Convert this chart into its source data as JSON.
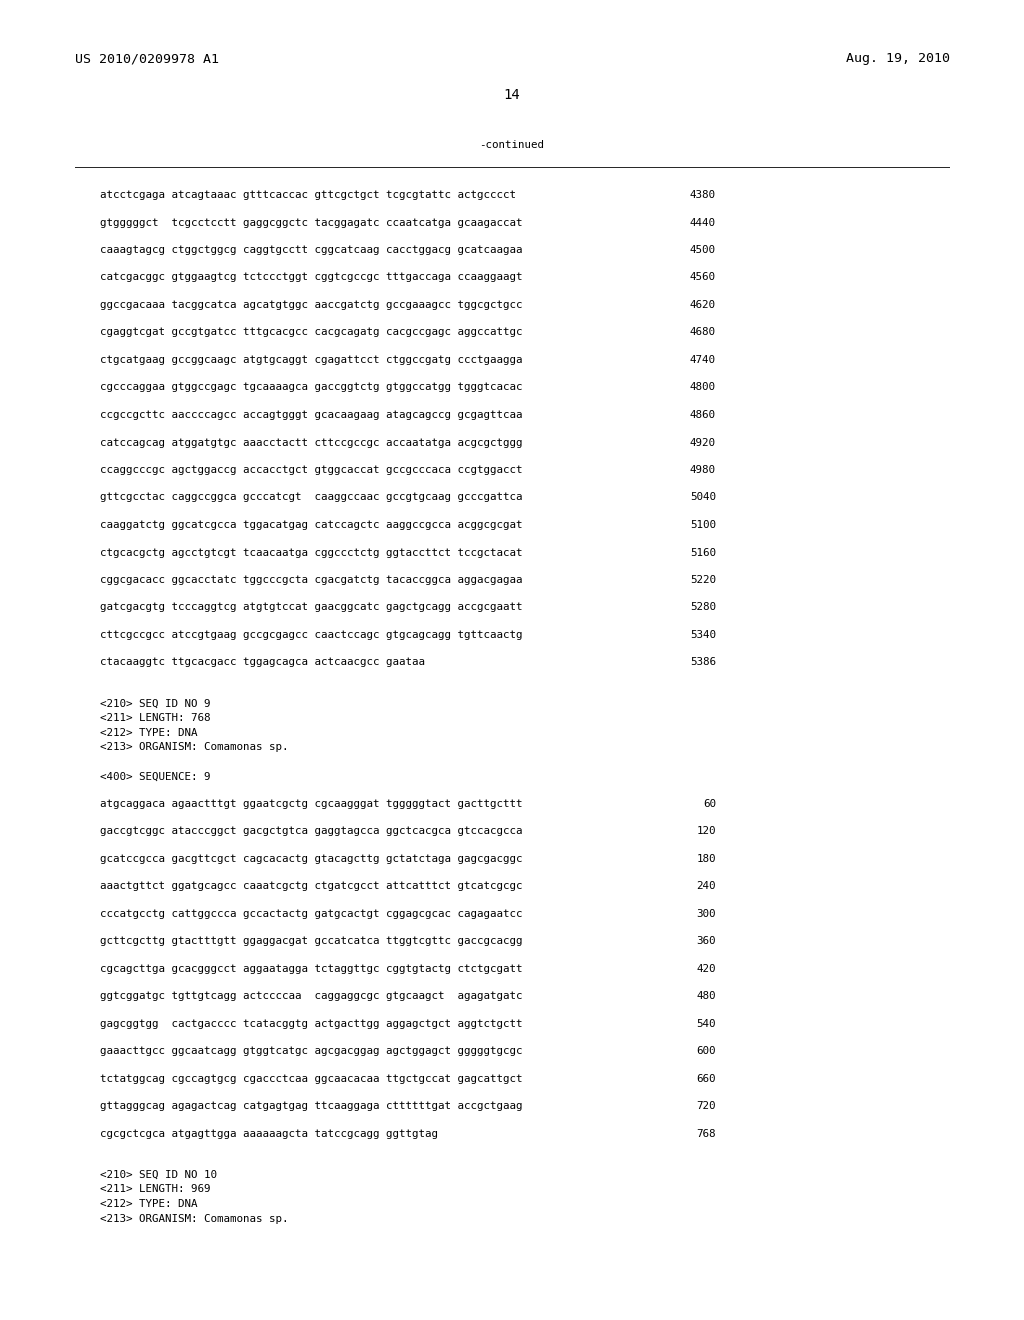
{
  "header_left": "US 2010/0209978 A1",
  "header_right": "Aug. 19, 2010",
  "page_number": "14",
  "continued_label": "-continued",
  "background_color": "#ffffff",
  "text_color": "#000000",
  "font_size_header": 9.5,
  "font_size_body": 7.8,
  "font_size_page": 10.0,
  "sequence_lines": [
    [
      "atcctcgaga atcagtaaac gtttcaccac gttcgctgct tcgcgtattc actgcccct",
      "4380"
    ],
    [
      "gtgggggct  tcgcctcctt gaggcggctc tacggagatc ccaatcatga gcaagaccat",
      "4440"
    ],
    [
      "caaagtagcg ctggctggcg caggtgcctt cggcatcaag cacctggacg gcatcaagaa",
      "4500"
    ],
    [
      "catcgacggc gtggaagtcg tctccctggt cggtcgccgc tttgaccaga ccaaggaagt",
      "4560"
    ],
    [
      "ggccgacaaa tacggcatca agcatgtggc aaccgatctg gccgaaagcc tggcgctgcc",
      "4620"
    ],
    [
      "cgaggtcgat gccgtgatcc tttgcacgcc cacgcagatg cacgccgagc aggccattgc",
      "4680"
    ],
    [
      "ctgcatgaag gccggcaagc atgtgcaggt cgagattcct ctggccgatg ccctgaagga",
      "4740"
    ],
    [
      "cgcccaggaa gtggccgagc tgcaaaagca gaccggtctg gtggccatgg tgggtcacac",
      "4800"
    ],
    [
      "ccgccgcttc aaccccagcc accagtgggt gcacaagaag atagcagccg gcgagttcaa",
      "4860"
    ],
    [
      "catccagcag atggatgtgc aaacctactt cttccgccgc accaatatga acgcgctggg",
      "4920"
    ],
    [
      "ccaggcccgc agctggaccg accacctgct gtggcaccat gccgcccaca ccgtggacct",
      "4980"
    ],
    [
      "gttcgcctac caggccggca gcccatcgt  caaggccaac gccgtgcaag gcccgattca",
      "5040"
    ],
    [
      "caaggatctg ggcatcgcca tggacatgag catccagctc aaggccgcca acggcgcgat",
      "5100"
    ],
    [
      "ctgcacgctg agcctgtcgt tcaacaatga cggccctctg ggtaccttct tccgctacat",
      "5160"
    ],
    [
      "cggcgacacc ggcacctatc tggcccgcta cgacgatctg tacaccggca aggacgagaa",
      "5220"
    ],
    [
      "gatcgacgtg tcccaggtcg atgtgtccat gaacggcatc gagctgcagg accgcgaatt",
      "5280"
    ],
    [
      "cttcgccgcc atccgtgaag gccgcgagcc caactccagc gtgcagcagg tgttcaactg",
      "5340"
    ],
    [
      "ctacaaggtc ttgcacgacc tggagcagca actcaacgcc gaataa",
      "5386"
    ]
  ],
  "seq9_header": [
    "<210> SEQ ID NO 9",
    "<211> LENGTH: 768",
    "<212> TYPE: DNA",
    "<213> ORGANISM: Comamonas sp."
  ],
  "seq9_label": "<400> SEQUENCE: 9",
  "seq9_lines": [
    [
      "atgcaggaca agaactttgt ggaatcgctg cgcaagggat tgggggtact gacttgcttt",
      "60"
    ],
    [
      "gaccgtcggc atacccggct gacgctgtca gaggtagcca ggctcacgca gtccacgcca",
      "120"
    ],
    [
      "gcatccgcca gacgttcgct cagcacactg gtacagcttg gctatctaga gagcgacggc",
      "180"
    ],
    [
      "aaactgttct ggatgcagcc caaatcgctg ctgatcgcct attcatttct gtcatcgcgc",
      "240"
    ],
    [
      "cccatgcctg cattggccca gccactactg gatgcactgt cggagcgcac cagagaatcc",
      "300"
    ],
    [
      "gcttcgcttg gtactttgtt ggaggacgat gccatcatca ttggtcgttc gaccgcacgg",
      "360"
    ],
    [
      "cgcagcttga gcacgggcct aggaatagga tctaggttgc cggtgtactg ctctgcgatt",
      "420"
    ],
    [
      "ggtcggatgc tgttgtcagg actccccaa  caggaggcgc gtgcaagct  agagatgatc",
      "480"
    ],
    [
      "gagcggtgg  cactgacccc tcatacggtg actgacttgg aggagctgct aggtctgctt",
      "540"
    ],
    [
      "gaaacttgcc ggcaatcagg gtggtcatgc agcgacggag agctggagct gggggtgcgc",
      "600"
    ],
    [
      "tctatggcag cgccagtgcg cgaccctcaa ggcaacacaa ttgctgccat gagcattgct",
      "660"
    ],
    [
      "gttagggcag agagactcag catgagtgag ttcaaggaga cttttttgat accgctgaag",
      "720"
    ],
    [
      "cgcgctcgca atgagttgga aaaaaagcta tatccgcagg ggttgtag",
      "768"
    ]
  ],
  "seq10_header": [
    "<210> SEQ ID NO 10",
    "<211> LENGTH: 969",
    "<212> TYPE: DNA",
    "<213> ORGANISM: Comamonas sp."
  ]
}
